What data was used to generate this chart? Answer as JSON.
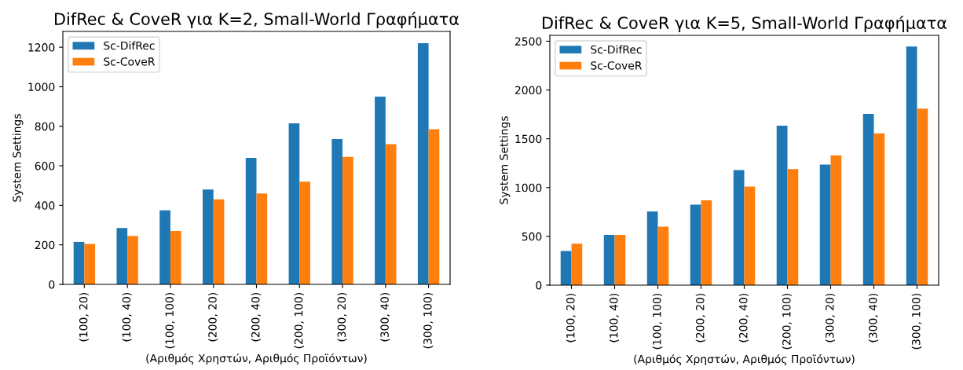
{
  "chart_data": [
    {
      "type": "bar",
      "title": "DifRec & CoveR για K=2, Small-World Γραφήματα",
      "xlabel": "(Αριθμός Χρηστών, Αριθμός Προϊόντων)",
      "ylabel": "System Settings",
      "categories": [
        "(100, 20)",
        "(100, 40)",
        "(100, 100)",
        "(200, 20)",
        "(200, 40)",
        "(200, 100)",
        "(300, 20)",
        "(300, 40)",
        "(300, 100)"
      ],
      "series": [
        {
          "name": "Sc-DifRec",
          "color": "#1f77b4",
          "values": [
            215,
            285,
            375,
            480,
            640,
            815,
            735,
            950,
            1220
          ]
        },
        {
          "name": "Sc-CoveR",
          "color": "#ff7f0e",
          "values": [
            205,
            245,
            270,
            430,
            460,
            520,
            645,
            710,
            785
          ]
        }
      ],
      "ylim": [
        0,
        1280
      ],
      "yticks": [
        0,
        200,
        400,
        600,
        800,
        1000,
        1200
      ],
      "legend": "top left",
      "grid": false
    },
    {
      "type": "bar",
      "title": "DifRec & CoveR για K=5, Small-World Γραφήματα",
      "xlabel": "(Αριθμός Χρηστών, Αριθμός Προϊόντων)",
      "ylabel": "System Settings",
      "categories": [
        "(100, 20)",
        "(100, 40)",
        "(100, 100)",
        "(200, 20)",
        "(200, 40)",
        "(200, 100)",
        "(300, 20)",
        "(300, 40)",
        "(300, 100)"
      ],
      "series": [
        {
          "name": "Sc-DifRec",
          "color": "#1f77b4",
          "values": [
            350,
            515,
            755,
            825,
            1180,
            1635,
            1235,
            1755,
            2445
          ]
        },
        {
          "name": "Sc-CoveR",
          "color": "#ff7f0e",
          "values": [
            425,
            515,
            600,
            870,
            1010,
            1190,
            1330,
            1555,
            1810
          ]
        }
      ],
      "ylim": [
        0,
        2560
      ],
      "yticks": [
        0,
        500,
        1000,
        1500,
        2000,
        2500
      ],
      "legend": "top left",
      "grid": false
    }
  ]
}
